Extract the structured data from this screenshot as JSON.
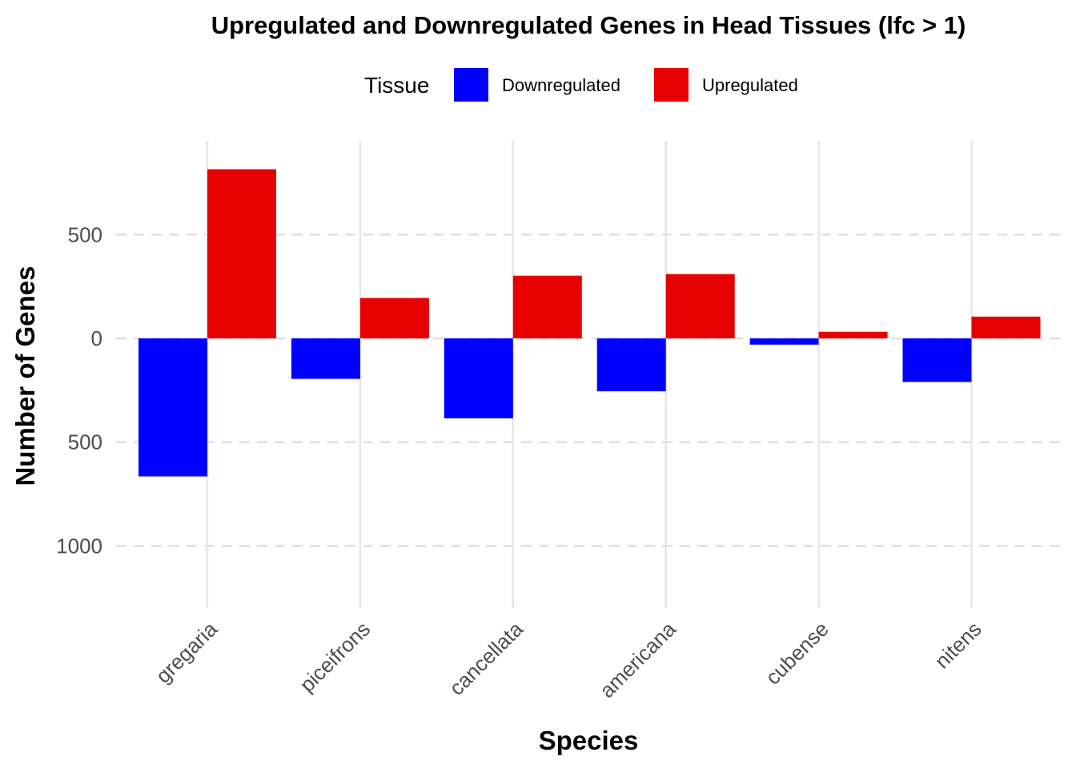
{
  "chart_data": {
    "type": "bar",
    "title": "Upregulated and Downregulated Genes in Head Tissues (lfc > 1)",
    "xlabel": "Species",
    "ylabel": "Number of Genes",
    "categories": [
      "gregaria",
      "piceifrons",
      "cancellata",
      "americana",
      "cubense",
      "nitens"
    ],
    "series": [
      {
        "name": "Downregulated",
        "color": "#0000ff",
        "values": [
          -665,
          -195,
          -385,
          -255,
          -30,
          -210
        ]
      },
      {
        "name": "Upregulated",
        "color": "#e60000",
        "values": [
          815,
          195,
          302,
          310,
          32,
          105
        ]
      }
    ],
    "legend": {
      "title": "Tissue",
      "position": "top"
    },
    "ylim": [
      -1300,
      950
    ],
    "yticks": [
      {
        "value": 500,
        "label": "500"
      },
      {
        "value": 0,
        "label": "0"
      },
      {
        "value": -500,
        "label": "500"
      },
      {
        "value": -1000,
        "label": "1000"
      }
    ],
    "grid": true
  }
}
